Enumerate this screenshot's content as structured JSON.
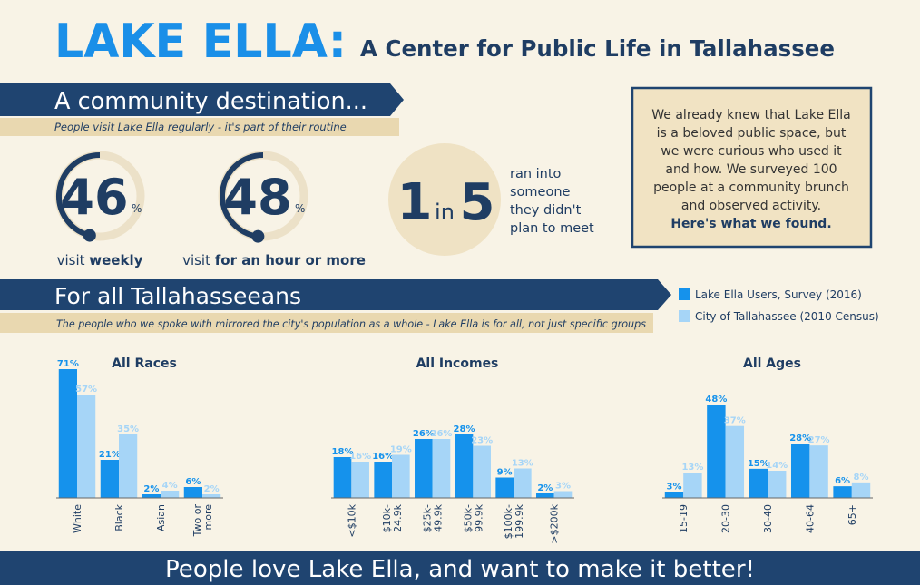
{
  "header": {
    "title": "LAKE ELLA:",
    "subtitle": "A Center for Public Life in Tallahassee"
  },
  "section1": {
    "heading": "A community destination...",
    "tagline": "People visit Lake Ella regularly - it's part of their routine"
  },
  "stats": [
    {
      "value": 46,
      "unit": "%",
      "label": "visit ",
      "label_bold": "weekly"
    },
    {
      "value": 48,
      "unit": "%",
      "label": "visit ",
      "label_bold": "for an hour or more"
    }
  ],
  "encounter": {
    "numerator": 1,
    "word": "in",
    "denominator": 5,
    "text": [
      "ran into",
      "someone",
      "they didn't",
      "plan to meet"
    ]
  },
  "callout": {
    "lines": [
      "We already knew that Lake Ella",
      "is a beloved public space, but",
      "we were curious who used it",
      "and how. We surveyed 100",
      "people at a community brunch",
      "and observed activity."
    ],
    "emphasis": "Here's what we found."
  },
  "section2": {
    "heading": "For all Tallahasseeans",
    "tagline": "The people who we spoke with mirrored the city's population as a whole - Lake Ella is for all, not just specific groups"
  },
  "chart_data": [
    {
      "type": "bar",
      "title": "All Races",
      "categories": [
        "White",
        "Black",
        "Asian",
        "Two or\nmore"
      ],
      "ylim": [
        0,
        75
      ],
      "series": [
        {
          "name": "Lake Ella Users, Survey (2016)",
          "color": "#1592ec",
          "values": [
            71,
            21,
            2,
            6
          ],
          "value_labels": [
            "71%",
            "21%",
            "2%",
            "6%"
          ]
        },
        {
          "name": "City of Tallahassee (2010 Census)",
          "color": "#a6d5f7",
          "values": [
            57,
            35,
            4,
            2
          ],
          "value_labels": [
            "57%",
            "35%",
            "4%",
            "2%"
          ]
        }
      ]
    },
    {
      "type": "bar",
      "title": "All Incomes",
      "categories": [
        "<$10k",
        "$10k-\n24.9k",
        "$25k-\n49.9k",
        "$50k-\n99.9k",
        "$100k-\n199.9k",
        ">$200k"
      ],
      "ylim": [
        0,
        60
      ],
      "series": [
        {
          "name": "Lake Ella Users, Survey (2016)",
          "color": "#1592ec",
          "values": [
            18,
            16,
            26,
            28,
            9,
            2
          ],
          "value_labels": [
            "18%",
            "16%",
            "26%",
            "28%",
            "9%",
            "2%"
          ]
        },
        {
          "name": "City of Tallahassee (2010 Census)",
          "color": "#a6d5f7",
          "values": [
            16,
            19,
            26,
            23,
            13,
            3
          ],
          "value_labels": [
            "16%",
            "19%",
            "26%",
            "23%",
            "13%",
            "3%"
          ]
        }
      ]
    },
    {
      "type": "bar",
      "title": "All Ages",
      "categories": [
        "15-19",
        "20-30",
        "30-40",
        "40-64",
        "65+"
      ],
      "ylim": [
        0,
        70
      ],
      "series": [
        {
          "name": "Lake Ella Users, Survey (2016)",
          "color": "#1592ec",
          "values": [
            3,
            48,
            15,
            28,
            6
          ],
          "value_labels": [
            "3%",
            "48%",
            "15%",
            "28%",
            "6%"
          ]
        },
        {
          "name": "City of Tallahassee (2010 Census)",
          "color": "#a6d5f7",
          "values": [
            13,
            37,
            14,
            27,
            8
          ],
          "value_labels": [
            "13%",
            "37%",
            "14%",
            "27%",
            "8%"
          ]
        }
      ]
    }
  ],
  "footer": "People love Lake Ella, and want to make it better!"
}
